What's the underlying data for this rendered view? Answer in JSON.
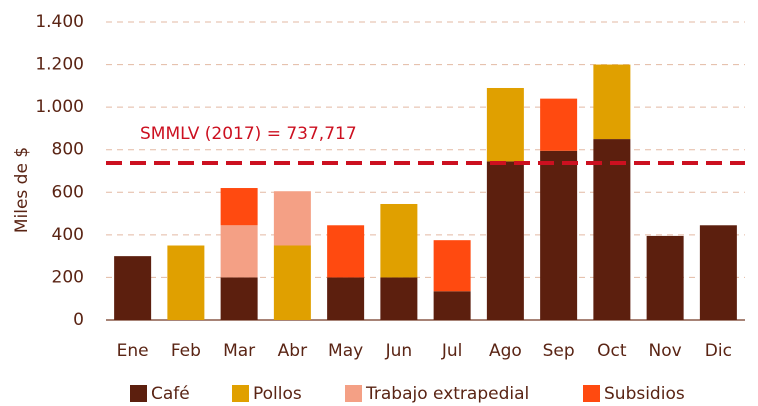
{
  "chart_data": {
    "type": "stacked_bar",
    "y_label": "Miles de $",
    "categories": [
      "Ene",
      "Feb",
      "Mar",
      "Abr",
      "May",
      "Jun",
      "Jul",
      "Ago",
      "Sep",
      "Oct",
      "Nov",
      "Dic"
    ],
    "series": [
      {
        "name": "Café",
        "color": "#5c1f0e",
        "values": [
          300,
          null,
          200,
          null,
          200,
          200,
          135,
          745,
          795,
          850,
          395,
          445
        ]
      },
      {
        "name": "Pollos",
        "color": "#e0a000",
        "values": [
          null,
          350,
          null,
          350,
          null,
          345,
          null,
          345,
          null,
          350,
          null,
          null
        ]
      },
      {
        "name": "Trabajo extrapedial",
        "color": "#f4a085",
        "values": [
          null,
          null,
          245,
          255,
          null,
          null,
          null,
          null,
          null,
          null,
          null,
          null
        ]
      },
      {
        "name": "Subsidios",
        "color": "#ff4a10",
        "values": [
          null,
          null,
          175,
          null,
          245,
          null,
          240,
          null,
          245,
          null,
          null,
          null
        ]
      }
    ],
    "reference_line": {
      "value": 737.717,
      "label": "SMMLV (2017) = 737,717",
      "color": "#cc1020"
    },
    "ylim": [
      0,
      1400
    ],
    "yticks": [
      0,
      200,
      400,
      600,
      800,
      {
        "value": 1000,
        "label": "1.000"
      },
      {
        "value": 1200,
        "label": "1.200"
      },
      {
        "value": 1400,
        "label": "1.400"
      }
    ],
    "grid": true
  }
}
